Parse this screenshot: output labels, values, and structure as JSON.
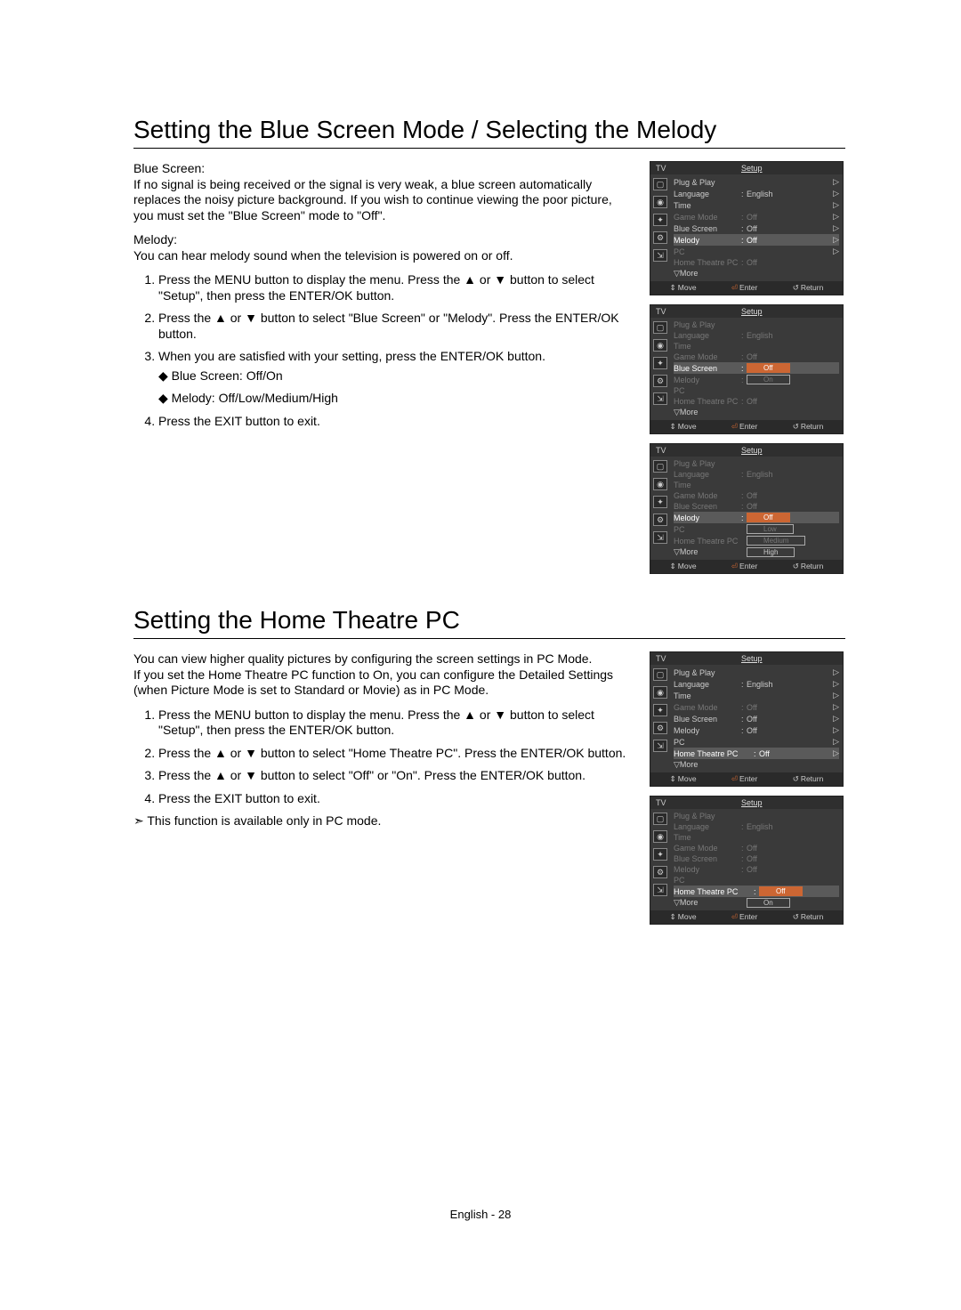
{
  "page_footer": "English - 28",
  "section1": {
    "title": "Setting the Blue Screen Mode / Selecting the Melody",
    "blue_label": "Blue Screen:",
    "blue_desc": "If no signal is being received or the signal is very weak, a blue screen automatically replaces the noisy picture background. If you wish to continue viewing the poor picture, you must set the \"Blue Screen\" mode to \"Off\".",
    "melody_label": "Melody:",
    "melody_desc": "You can hear melody sound when the television is powered on or off.",
    "steps": [
      "Press the MENU button to display the menu. Press the ▲ or ▼ button to select \"Setup\", then press the ENTER/OK button.",
      "Press the ▲ or ▼ button to select \"Blue Screen\" or \"Melody\". Press the ENTER/OK button.",
      "When you are satisfied with your setting, press the ENTER/OK button.",
      "Press the EXIT button to exit."
    ],
    "bullets": [
      "Blue Screen: Off/On",
      "Melody: Off/Low/Medium/High"
    ]
  },
  "section2": {
    "title": "Setting the Home Theatre PC",
    "intro1": "You can view higher quality pictures by configuring the screen settings in PC Mode.",
    "intro2": "If you set the Home Theatre PC function to On, you can configure the Detailed Settings (when Picture Mode is set to Standard or Movie) as in PC Mode.",
    "steps": [
      "Press the MENU button to display the menu. Press the ▲ or ▼ button to select \"Setup\", then press the ENTER/OK button.",
      "Press the ▲ or ▼ button to select  \"Home Theatre PC\". Press the ENTER/OK button.",
      "Press the ▲ or ▼ button to select \"Off\" or \"On\". Press the ENTER/OK button.",
      "Press the EXIT button to exit."
    ],
    "note": "This function is available only in PC mode."
  },
  "osd": {
    "tv": "TV",
    "setup": "Setup",
    "footer": {
      "move": "Move",
      "enter": "Enter",
      "return": "Return"
    },
    "labels": {
      "plug": "Plug & Play",
      "lang": "Language",
      "lang_val": "English",
      "time": "Time",
      "game": "Game Mode",
      "off": "Off",
      "blue": "Blue Screen",
      "melody": "Melody",
      "pc": "PC",
      "htpc": "Home Theatre PC",
      "more": "▽More",
      "on": "On",
      "low": "Low",
      "medium": "Medium",
      "high": "High"
    }
  }
}
